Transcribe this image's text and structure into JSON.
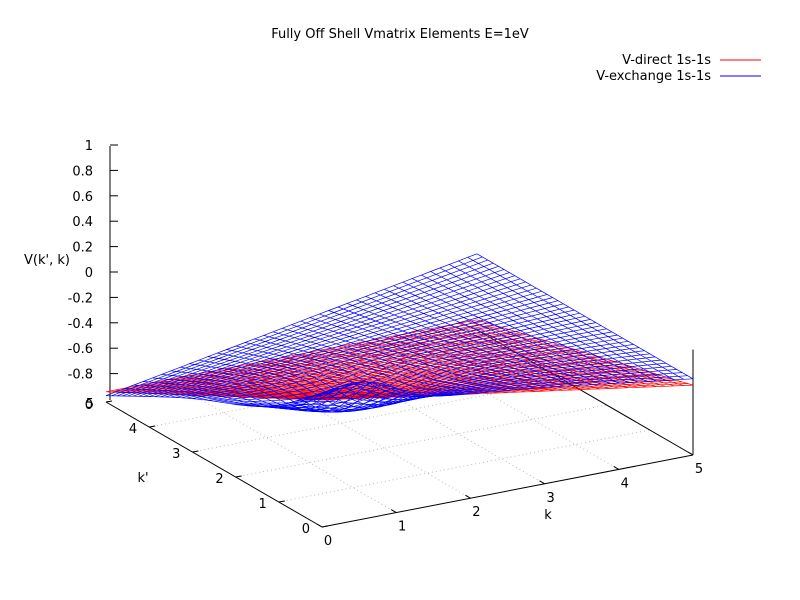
{
  "chart_data": {
    "type": "surface",
    "title": "Fully Off Shell Vmatrix Elements E=1eV",
    "xlabel": "k",
    "ylabel": "k'",
    "zlabel": "V(k', k)",
    "x_range": [
      0,
      5
    ],
    "y_range": [
      0,
      5
    ],
    "z_range": [
      -1,
      1
    ],
    "x_ticks": [
      "0",
      "1",
      "2",
      "3",
      "4",
      "5"
    ],
    "y_ticks": [
      "0",
      "1",
      "2",
      "3",
      "4",
      "5"
    ],
    "z_ticks": [
      "-0.8",
      "-0.6",
      "-0.4",
      "-0.2",
      "0",
      "0.2",
      "0.4",
      "0.6",
      "0.8",
      "1"
    ],
    "z_tick_values": [
      -0.8,
      -0.6,
      -0.4,
      -0.2,
      0,
      0.2,
      0.4,
      0.6,
      0.8,
      1
    ],
    "z_floor_label": "0",
    "legend_position": "top-right",
    "series": [
      {
        "name": "V-direct 1s-1s",
        "color": "#ff0000",
        "corner_values": {
          "k0_kp0": 0.0,
          "k5_kp0": -0.45,
          "k0_kp5": -0.92,
          "k5_kp5": -0.92
        },
        "minimum_along_diagonal": -0.93
      },
      {
        "name": "V-exchange 1s-1s",
        "color": "#0000ff",
        "corner_values": {
          "k0_kp0": 0.0,
          "k5_kp0": -0.4,
          "k0_kp5": -0.95,
          "k5_kp5": -0.4
        },
        "peak_near": {
          "k": 0.6,
          "kp": 0.1,
          "v": 0.1
        },
        "trough_near": {
          "k": 1.2,
          "kp": 1.5,
          "v": -0.48
        }
      }
    ]
  }
}
